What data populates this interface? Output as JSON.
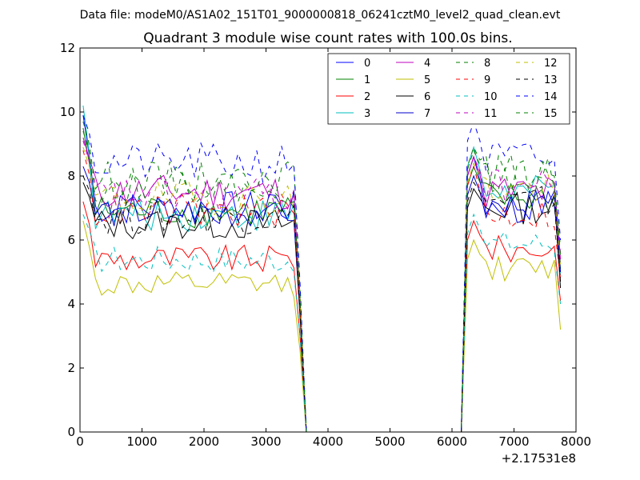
{
  "chart_data": {
    "type": "line",
    "suptitle": "Data file: modeM0/AS1A02_151T01_9000000818_06241cztM0_level2_quad_clean.evt",
    "title": "Quadrant 3 module wise count rates with 100.0s bins.",
    "xlabel": "",
    "ylabel": "",
    "x_offset_label": "+2.17531e8",
    "xlim": [
      0,
      8000
    ],
    "ylim": [
      0,
      12
    ],
    "x_ticks": [
      "0",
      "1000",
      "2000",
      "3000",
      "4000",
      "5000",
      "6000",
      "7000",
      "8000"
    ],
    "y_ticks": [
      "0",
      "2",
      "4",
      "6",
      "8",
      "10",
      "12"
    ],
    "grid": false,
    "legend_position": "top-right",
    "legend_columns": 4,
    "x_bins": {
      "start": 50,
      "step": 100,
      "count": 78
    },
    "gap": {
      "last_active_x": 3550,
      "zero_start_x": 3650,
      "zero_end_x": 6150,
      "resume_x": 6250
    },
    "series": [
      {
        "name": "0",
        "color": "#0000ff",
        "dash": "solid",
        "level_before": 7.0,
        "first_value": 9.9,
        "level_after": 7.1,
        "peak_after": 8.6,
        "final_value": 5.3
      },
      {
        "name": "1",
        "color": "#008000",
        "dash": "solid",
        "level_before": 6.9,
        "first_value": 9.5,
        "level_after": 7.3,
        "peak_after": 8.3,
        "final_value": 5.1
      },
      {
        "name": "2",
        "color": "#ff0000",
        "dash": "solid",
        "level_before": 5.4,
        "first_value": 7.2,
        "level_after": 5.7,
        "peak_after": 6.6,
        "final_value": 4.1
      },
      {
        "name": "3",
        "color": "#00bfbf",
        "dash": "solid",
        "level_before": 6.8,
        "first_value": 10.2,
        "level_after": 7.5,
        "peak_after": 8.9,
        "final_value": 4.9
      },
      {
        "name": "4",
        "color": "#bf00bf",
        "dash": "solid",
        "level_before": 7.5,
        "first_value": 9.2,
        "level_after": 7.5,
        "peak_after": 8.6,
        "final_value": 5.4
      },
      {
        "name": "5",
        "color": "#bfbf00",
        "dash": "solid",
        "level_before": 4.6,
        "first_value": 6.6,
        "level_after": 5.1,
        "peak_after": 6.0,
        "final_value": 3.2
      },
      {
        "name": "6",
        "color": "#000000",
        "dash": "solid",
        "level_before": 6.5,
        "first_value": 7.8,
        "level_after": 7.0,
        "peak_after": 7.6,
        "final_value": 4.5
      },
      {
        "name": "7",
        "color": "#0000cc",
        "dash": "solid",
        "level_before": 6.9,
        "first_value": 8.3,
        "level_after": 7.0,
        "peak_after": 8.0,
        "final_value": 5.0
      },
      {
        "name": "8",
        "color": "#008000",
        "dash": "dashed",
        "level_before": 7.9,
        "first_value": 9.7,
        "level_after": 8.1,
        "peak_after": 8.9,
        "final_value": 5.8
      },
      {
        "name": "9",
        "color": "#ff0000",
        "dash": "dashed",
        "level_before": 6.9,
        "first_value": 8.8,
        "level_after": 6.8,
        "peak_after": 8.3,
        "final_value": 4.8
      },
      {
        "name": "10",
        "color": "#00bfbf",
        "dash": "dashed",
        "level_before": 5.4,
        "first_value": 6.8,
        "level_after": 5.9,
        "peak_after": 6.8,
        "final_value": 4.0
      },
      {
        "name": "11",
        "color": "#bf00bf",
        "dash": "dashed",
        "level_before": 7.4,
        "first_value": 9.1,
        "level_after": 7.7,
        "peak_after": 8.6,
        "final_value": 5.6
      },
      {
        "name": "12",
        "color": "#bfbf00",
        "dash": "dashed",
        "level_before": 7.3,
        "first_value": 8.9,
        "level_after": 7.6,
        "peak_after": 8.4,
        "final_value": 5.2
      },
      {
        "name": "13",
        "color": "#000000",
        "dash": "dashed",
        "level_before": 6.7,
        "first_value": 8.0,
        "level_after": 7.2,
        "peak_after": 7.8,
        "final_value": 4.7
      },
      {
        "name": "14",
        "color": "#0000ff",
        "dash": "dashed",
        "level_before": 8.4,
        "first_value": 9.9,
        "level_after": 8.5,
        "peak_after": 9.7,
        "final_value": 6.0
      },
      {
        "name": "15",
        "color": "#008000",
        "dash": "dashed",
        "level_before": 7.7,
        "first_value": 9.4,
        "level_after": 7.9,
        "peak_after": 8.8,
        "final_value": 5.5
      }
    ]
  }
}
